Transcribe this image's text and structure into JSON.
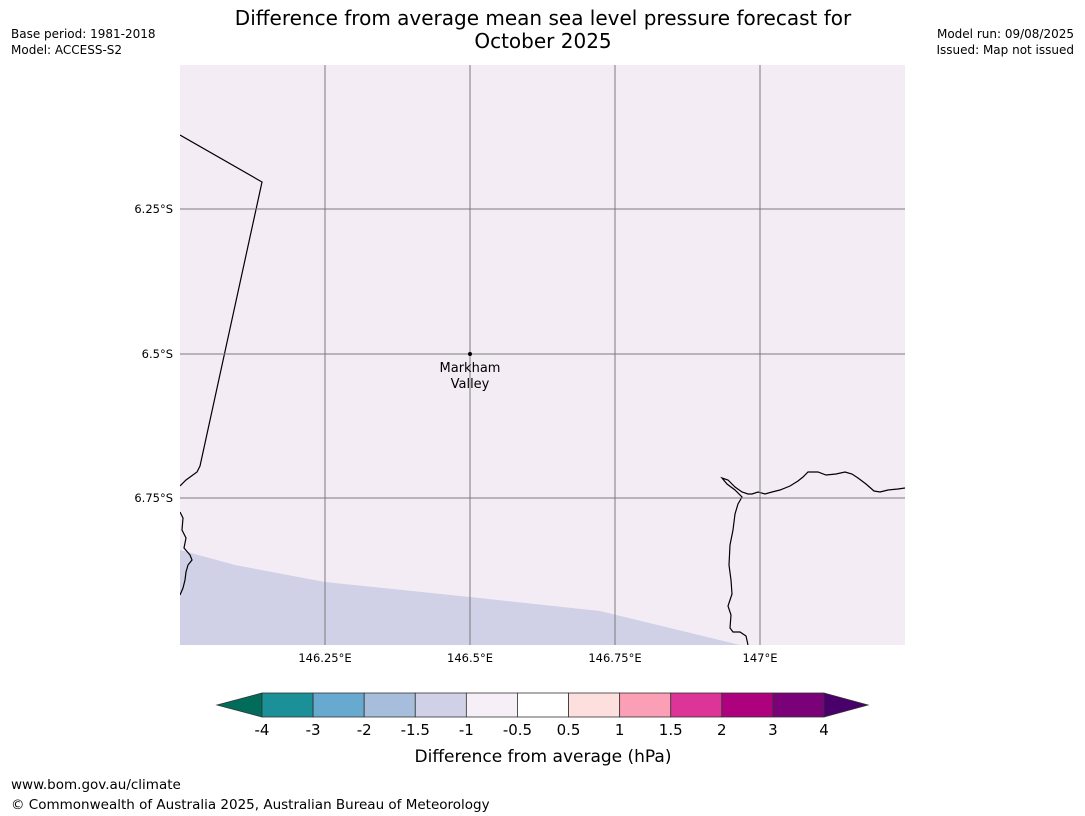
{
  "meta": {
    "base_period": "Base period: 1981-2018",
    "model": "Model: ACCESS-S2",
    "model_run": "Model run: 09/08/2025",
    "issued": "Issued: Map not issued"
  },
  "title_line1": "Difference from average mean sea level pressure forecast for",
  "title_line2": "October 2025",
  "map": {
    "background_color": "#f4ecf5",
    "lower_region_color": "#d0d1e6",
    "lon_ticks": [
      "146.25°E",
      "146.5°E",
      "146.75°E",
      "147°E"
    ],
    "lat_ticks": [
      "6.25°S",
      "6.5°S",
      "6.75°S"
    ],
    "place_label": [
      "Markham",
      "Valley"
    ]
  },
  "colorbar": {
    "label": "Difference from average (hPa)",
    "ticks": [
      "-4",
      "-3",
      "-2",
      "-1.5",
      "-1",
      "-0.5",
      "0.5",
      "1",
      "1.5",
      "2",
      "3",
      "4"
    ],
    "colors": [
      "#016c59",
      "#1c9099",
      "#67a9cf",
      "#a6bddb",
      "#d0d1e6",
      "#f6eff7",
      "#ffffff",
      "#fde0dd",
      "#fa9fb5",
      "#dd3497",
      "#ae017e",
      "#7a0177",
      "#49006a"
    ]
  },
  "footer": {
    "url": "www.bom.gov.au/climate",
    "copyright": "© Commonwealth of Australia 2025, Australian Bureau of Meteorology"
  }
}
